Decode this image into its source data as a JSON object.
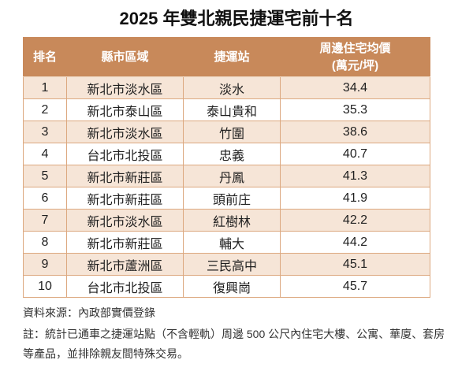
{
  "title": "2025 年雙北親民捷運宅前十名",
  "table": {
    "columns": [
      {
        "label": "排名"
      },
      {
        "label": "縣市區域"
      },
      {
        "label": "捷運站"
      },
      {
        "label": "周邊住宅均價",
        "sublabel": "(萬元/坪)"
      }
    ]
  },
  "chart_data": {
    "type": "table",
    "title": "2025 年雙北親民捷運宅前十名",
    "columns": [
      "排名",
      "縣市區域",
      "捷運站",
      "周邊住宅均價 (萬元/坪)"
    ],
    "rows": [
      [
        "1",
        "新北市淡水區",
        "淡水",
        "34.4"
      ],
      [
        "2",
        "新北市泰山區",
        "泰山貴和",
        "35.3"
      ],
      [
        "3",
        "新北市淡水區",
        "竹圍",
        "38.6"
      ],
      [
        "4",
        "台北市北投區",
        "忠義",
        "40.7"
      ],
      [
        "5",
        "新北市新莊區",
        "丹鳳",
        "41.3"
      ],
      [
        "6",
        "新北市新莊區",
        "頭前庄",
        "41.9"
      ],
      [
        "7",
        "新北市淡水區",
        "紅樹林",
        "42.2"
      ],
      [
        "8",
        "新北市新莊區",
        "輔大",
        "44.2"
      ],
      [
        "9",
        "新北市蘆洲區",
        "三民高中",
        "45.1"
      ],
      [
        "10",
        "台北市北投區",
        "復興崗",
        "45.7"
      ]
    ]
  },
  "footer": {
    "source": "資料來源：內政部實價登錄",
    "note": "註：統計已通車之捷運站點（不含輕軌）周邊 500 公尺內住宅大樓、公寓、華廈、套房等產品，並排除親友間特殊交易。"
  },
  "colors": {
    "header_bg": "#C8895A",
    "band_bg": "#F6E5D7",
    "border": "#DCA87F"
  }
}
